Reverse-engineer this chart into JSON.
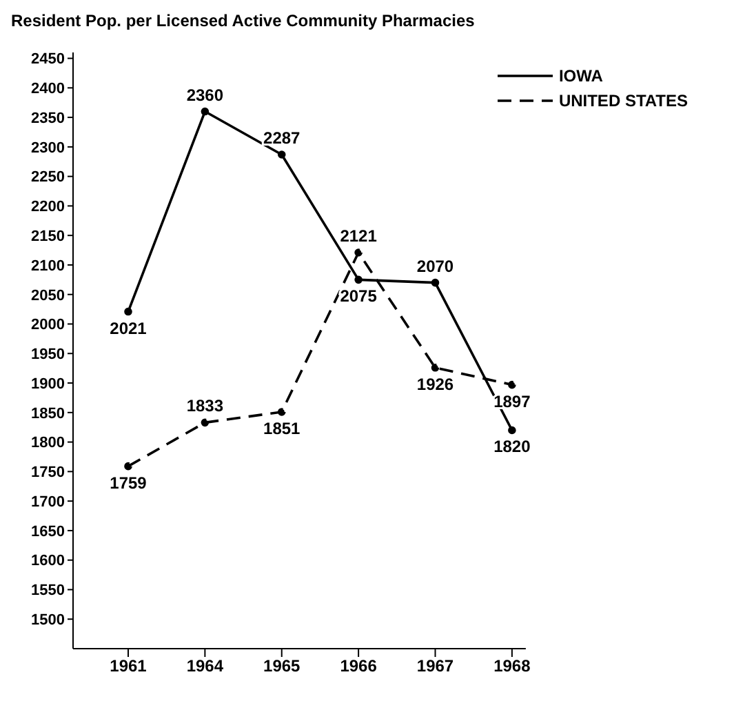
{
  "chart_data": {
    "type": "line",
    "title": "Resident Pop. per Licensed Active Community Pharmacies",
    "categories": [
      "1961",
      "1964",
      "1965",
      "1966",
      "1967",
      "1968"
    ],
    "series": [
      {
        "name": "IOWA",
        "color": "#000000",
        "line_style": "solid",
        "values": [
          2021,
          2360,
          2287,
          2075,
          2070,
          1820
        ]
      },
      {
        "name": "UNITED STATES",
        "color": "#000000",
        "line_style": "dashed",
        "values": [
          1759,
          1833,
          1851,
          2121,
          1926,
          1897
        ]
      }
    ],
    "ylim": [
      1450,
      2460
    ],
    "yticks": [
      1500,
      1550,
      1600,
      1650,
      1700,
      1750,
      1800,
      1850,
      1900,
      1950,
      2000,
      2050,
      2100,
      2150,
      2200,
      2250,
      2300,
      2350,
      2400,
      2450
    ],
    "data_labels": true,
    "legend": "top right",
    "grid": false,
    "marker": "circle"
  }
}
